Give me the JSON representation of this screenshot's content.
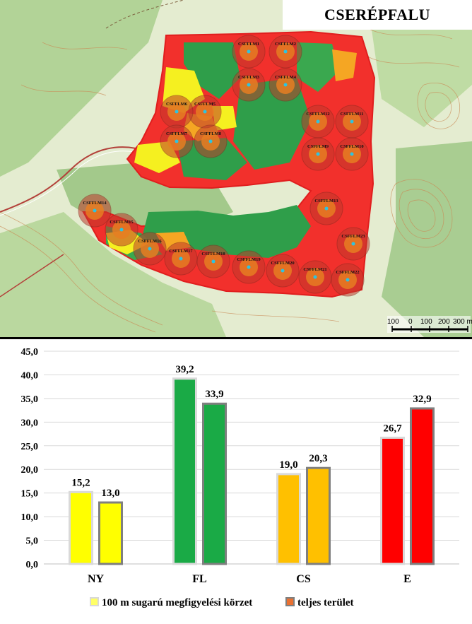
{
  "title": "CSERÉPFALU",
  "map": {
    "scale_labels": [
      "100",
      "0",
      "100",
      "200",
      "300 m"
    ],
    "plots": [
      {
        "label": "CSFFLM1"
      },
      {
        "label": "CSFFLM2"
      },
      {
        "label": "CSFFLM3"
      },
      {
        "label": "CSFFLM4"
      },
      {
        "label": "CSFFLM5"
      },
      {
        "label": "CSFFLM6"
      },
      {
        "label": "CSFFLM7"
      },
      {
        "label": "CSFFLM8"
      },
      {
        "label": "CSFFLM9"
      },
      {
        "label": "CSFFLM10"
      },
      {
        "label": "CSFFLM11"
      },
      {
        "label": "CSFFLM12"
      },
      {
        "label": "CSFFLM13"
      },
      {
        "label": "CSFFLM14"
      },
      {
        "label": "CSFFLM15"
      },
      {
        "label": "CSFFLM16"
      },
      {
        "label": "CSFFLM17"
      },
      {
        "label": "CSFFLM18"
      },
      {
        "label": "CSFFLM19"
      },
      {
        "label": "CSFFLM20"
      },
      {
        "label": "CSFFLM21"
      },
      {
        "label": "CSFFLM22"
      },
      {
        "label": "CSFFLM23"
      }
    ]
  },
  "chart_data": {
    "type": "bar",
    "categories": [
      "NY",
      "FL",
      "CS",
      "E"
    ],
    "series": [
      {
        "name": "100 m sugarú megfigyelési körzet",
        "values": [
          15.2,
          39.2,
          19.0,
          26.7
        ]
      },
      {
        "name": "teljes terület",
        "values": [
          13.0,
          33.9,
          20.3,
          32.9
        ]
      }
    ],
    "category_colors": [
      "#ffff00",
      "#1aaa46",
      "#ffc000",
      "#ff0000"
    ],
    "legend_colors": [
      "#ffff66",
      "#e97132"
    ],
    "series_border_colors": [
      "#d9d9d9",
      "#7f7f7f"
    ],
    "ylim": [
      0,
      45
    ],
    "yticks": [
      "0,0",
      "5,0",
      "10,0",
      "15,0",
      "20,0",
      "25,0",
      "30,0",
      "35,0",
      "40,0",
      "45,0"
    ],
    "value_labels": [
      [
        "15,2",
        "39,2",
        "19,0",
        "26,7"
      ],
      [
        "13,0",
        "33,9",
        "20,3",
        "32,9"
      ]
    ],
    "grid": true,
    "legend_position": "bottom"
  }
}
